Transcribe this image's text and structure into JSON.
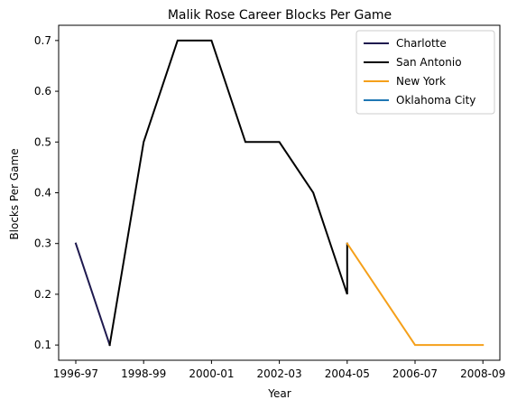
{
  "chart_data": {
    "type": "line",
    "title": "Malik Rose Career Blocks Per Game",
    "xlabel": "Year",
    "ylabel": "Blocks Per Game",
    "x_categories": [
      "1996-97",
      "1997-98",
      "1998-99",
      "1999-00",
      "2000-01",
      "2001-02",
      "2002-03",
      "2003-04",
      "2004-05",
      "2005-06",
      "2006-07",
      "2007-08",
      "2008-09"
    ],
    "x_tick_labels": [
      "1996-97",
      "1998-99",
      "2000-01",
      "2002-03",
      "2004-05",
      "2006-07",
      "2008-09"
    ],
    "y_ticks": [
      0.1,
      0.2,
      0.3,
      0.4,
      0.5,
      0.6,
      0.7
    ],
    "ylim": [
      0.07,
      0.73
    ],
    "grid": false,
    "legend_position": "top-right",
    "series": [
      {
        "name": "Charlotte",
        "color": "#1f1a4f",
        "points": [
          [
            "1996-97",
            0.3
          ],
          [
            "1997-98",
            0.1
          ]
        ]
      },
      {
        "name": "San Antonio",
        "color": "#000000",
        "points": [
          [
            "1997-98",
            0.1
          ],
          [
            "1998-99",
            0.5
          ],
          [
            "1999-00",
            0.7
          ],
          [
            "2000-01",
            0.7
          ],
          [
            "2001-02",
            0.5
          ],
          [
            "2002-03",
            0.5
          ],
          [
            "2003-04",
            0.4
          ],
          [
            "2004-05",
            0.2
          ],
          [
            "2004-05",
            0.3
          ]
        ]
      },
      {
        "name": "New York",
        "color": "#f5a01a",
        "points": [
          [
            "2004-05",
            0.3
          ],
          [
            "2006-07",
            0.1
          ],
          [
            "2008-09",
            0.1
          ]
        ]
      },
      {
        "name": "Oklahoma City",
        "color": "#1f77b4",
        "points": [
          [
            "2008-09",
            0.1
          ]
        ]
      }
    ]
  }
}
